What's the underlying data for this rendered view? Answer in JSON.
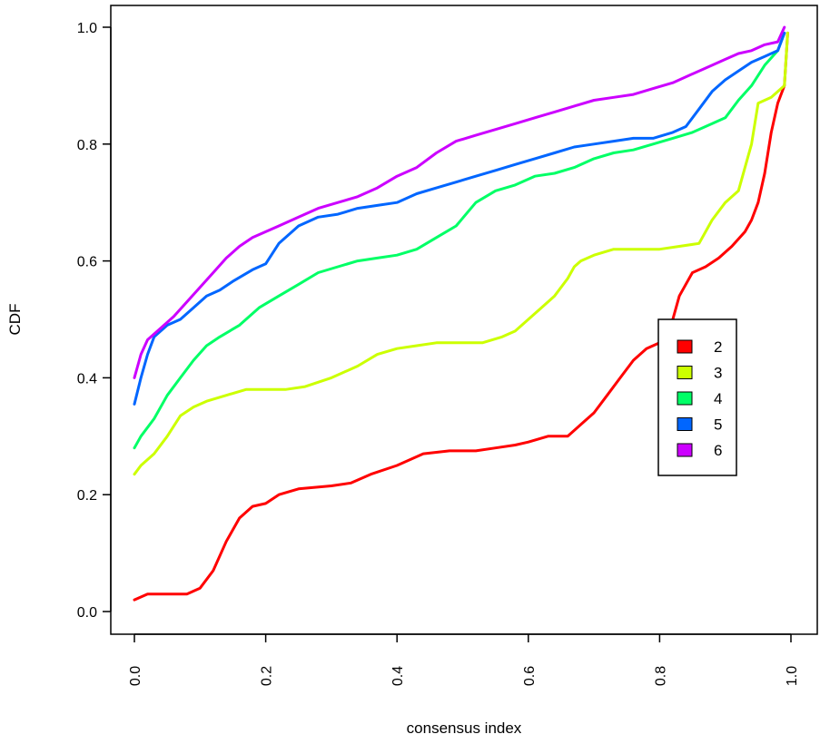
{
  "chart_data": {
    "type": "line",
    "title": "",
    "xlabel": "consensus index",
    "ylabel": "CDF",
    "xlim": [
      0.0,
      1.0
    ],
    "ylim": [
      0.0,
      1.0
    ],
    "xticks": [
      "0.0",
      "0.2",
      "0.4",
      "0.6",
      "0.8",
      "1.0"
    ],
    "yticks": [
      "0.0",
      "0.2",
      "0.4",
      "0.6",
      "0.8",
      "1.0"
    ],
    "grid": false,
    "legend_position": "right",
    "series": [
      {
        "name": "2",
        "color": "#ff0000",
        "x": [
          0.0,
          0.02,
          0.05,
          0.08,
          0.1,
          0.12,
          0.14,
          0.16,
          0.18,
          0.2,
          0.22,
          0.25,
          0.3,
          0.33,
          0.36,
          0.4,
          0.44,
          0.48,
          0.52,
          0.55,
          0.58,
          0.6,
          0.63,
          0.66,
          0.68,
          0.7,
          0.72,
          0.74,
          0.76,
          0.78,
          0.8,
          0.82,
          0.83,
          0.85,
          0.87,
          0.89,
          0.91,
          0.93,
          0.94,
          0.95,
          0.96,
          0.97,
          0.98,
          0.99,
          0.995
        ],
        "y": [
          0.02,
          0.03,
          0.03,
          0.03,
          0.04,
          0.07,
          0.12,
          0.16,
          0.18,
          0.185,
          0.2,
          0.21,
          0.215,
          0.22,
          0.235,
          0.25,
          0.27,
          0.275,
          0.275,
          0.28,
          0.285,
          0.29,
          0.3,
          0.3,
          0.32,
          0.34,
          0.37,
          0.4,
          0.43,
          0.45,
          0.46,
          0.5,
          0.54,
          0.58,
          0.59,
          0.605,
          0.625,
          0.65,
          0.67,
          0.7,
          0.75,
          0.82,
          0.87,
          0.9,
          0.99
        ]
      },
      {
        "name": "3",
        "color": "#ccff00",
        "x": [
          0.0,
          0.01,
          0.03,
          0.05,
          0.07,
          0.09,
          0.11,
          0.14,
          0.17,
          0.2,
          0.23,
          0.26,
          0.3,
          0.34,
          0.37,
          0.4,
          0.43,
          0.46,
          0.5,
          0.53,
          0.56,
          0.58,
          0.6,
          0.62,
          0.64,
          0.66,
          0.67,
          0.68,
          0.7,
          0.73,
          0.76,
          0.8,
          0.83,
          0.86,
          0.88,
          0.9,
          0.92,
          0.94,
          0.95,
          0.97,
          0.99,
          0.995
        ],
        "y": [
          0.235,
          0.25,
          0.27,
          0.3,
          0.335,
          0.35,
          0.36,
          0.37,
          0.38,
          0.38,
          0.38,
          0.385,
          0.4,
          0.42,
          0.44,
          0.45,
          0.455,
          0.46,
          0.46,
          0.46,
          0.47,
          0.48,
          0.5,
          0.52,
          0.54,
          0.57,
          0.59,
          0.6,
          0.61,
          0.62,
          0.62,
          0.62,
          0.625,
          0.63,
          0.67,
          0.7,
          0.72,
          0.8,
          0.87,
          0.88,
          0.9,
          0.99
        ]
      },
      {
        "name": "4",
        "color": "#00ff66",
        "x": [
          0.0,
          0.01,
          0.03,
          0.05,
          0.07,
          0.09,
          0.11,
          0.13,
          0.16,
          0.19,
          0.22,
          0.25,
          0.28,
          0.31,
          0.34,
          0.37,
          0.4,
          0.43,
          0.46,
          0.49,
          0.52,
          0.55,
          0.58,
          0.61,
          0.64,
          0.67,
          0.7,
          0.73,
          0.76,
          0.79,
          0.82,
          0.85,
          0.88,
          0.9,
          0.92,
          0.94,
          0.96,
          0.98,
          0.99
        ],
        "y": [
          0.28,
          0.3,
          0.33,
          0.37,
          0.4,
          0.43,
          0.455,
          0.47,
          0.49,
          0.52,
          0.54,
          0.56,
          0.58,
          0.59,
          0.6,
          0.605,
          0.61,
          0.62,
          0.64,
          0.66,
          0.7,
          0.72,
          0.73,
          0.745,
          0.75,
          0.76,
          0.775,
          0.785,
          0.79,
          0.8,
          0.81,
          0.82,
          0.835,
          0.845,
          0.875,
          0.9,
          0.935,
          0.96,
          0.99
        ]
      },
      {
        "name": "5",
        "color": "#0066ff",
        "x": [
          0.0,
          0.01,
          0.02,
          0.03,
          0.05,
          0.07,
          0.09,
          0.11,
          0.13,
          0.15,
          0.18,
          0.2,
          0.22,
          0.25,
          0.28,
          0.31,
          0.34,
          0.37,
          0.4,
          0.43,
          0.46,
          0.49,
          0.52,
          0.55,
          0.58,
          0.61,
          0.64,
          0.67,
          0.7,
          0.73,
          0.76,
          0.79,
          0.82,
          0.84,
          0.86,
          0.88,
          0.9,
          0.92,
          0.94,
          0.96,
          0.98,
          0.99
        ],
        "y": [
          0.355,
          0.4,
          0.44,
          0.47,
          0.49,
          0.5,
          0.52,
          0.54,
          0.55,
          0.565,
          0.585,
          0.595,
          0.63,
          0.66,
          0.675,
          0.68,
          0.69,
          0.695,
          0.7,
          0.715,
          0.725,
          0.735,
          0.745,
          0.755,
          0.765,
          0.775,
          0.785,
          0.795,
          0.8,
          0.805,
          0.81,
          0.81,
          0.82,
          0.83,
          0.86,
          0.89,
          0.91,
          0.925,
          0.94,
          0.95,
          0.96,
          0.99
        ]
      },
      {
        "name": "6",
        "color": "#cc00ff",
        "x": [
          0.0,
          0.01,
          0.02,
          0.04,
          0.06,
          0.08,
          0.1,
          0.12,
          0.14,
          0.16,
          0.18,
          0.2,
          0.22,
          0.25,
          0.28,
          0.31,
          0.34,
          0.37,
          0.4,
          0.43,
          0.46,
          0.49,
          0.52,
          0.55,
          0.58,
          0.61,
          0.64,
          0.67,
          0.7,
          0.73,
          0.76,
          0.79,
          0.82,
          0.85,
          0.88,
          0.9,
          0.92,
          0.94,
          0.96,
          0.98,
          0.99
        ],
        "y": [
          0.4,
          0.44,
          0.465,
          0.485,
          0.505,
          0.53,
          0.555,
          0.58,
          0.605,
          0.625,
          0.64,
          0.65,
          0.66,
          0.675,
          0.69,
          0.7,
          0.71,
          0.725,
          0.745,
          0.76,
          0.785,
          0.805,
          0.815,
          0.825,
          0.835,
          0.845,
          0.855,
          0.865,
          0.875,
          0.88,
          0.885,
          0.895,
          0.905,
          0.92,
          0.935,
          0.945,
          0.955,
          0.96,
          0.97,
          0.975,
          1.0
        ]
      }
    ]
  }
}
